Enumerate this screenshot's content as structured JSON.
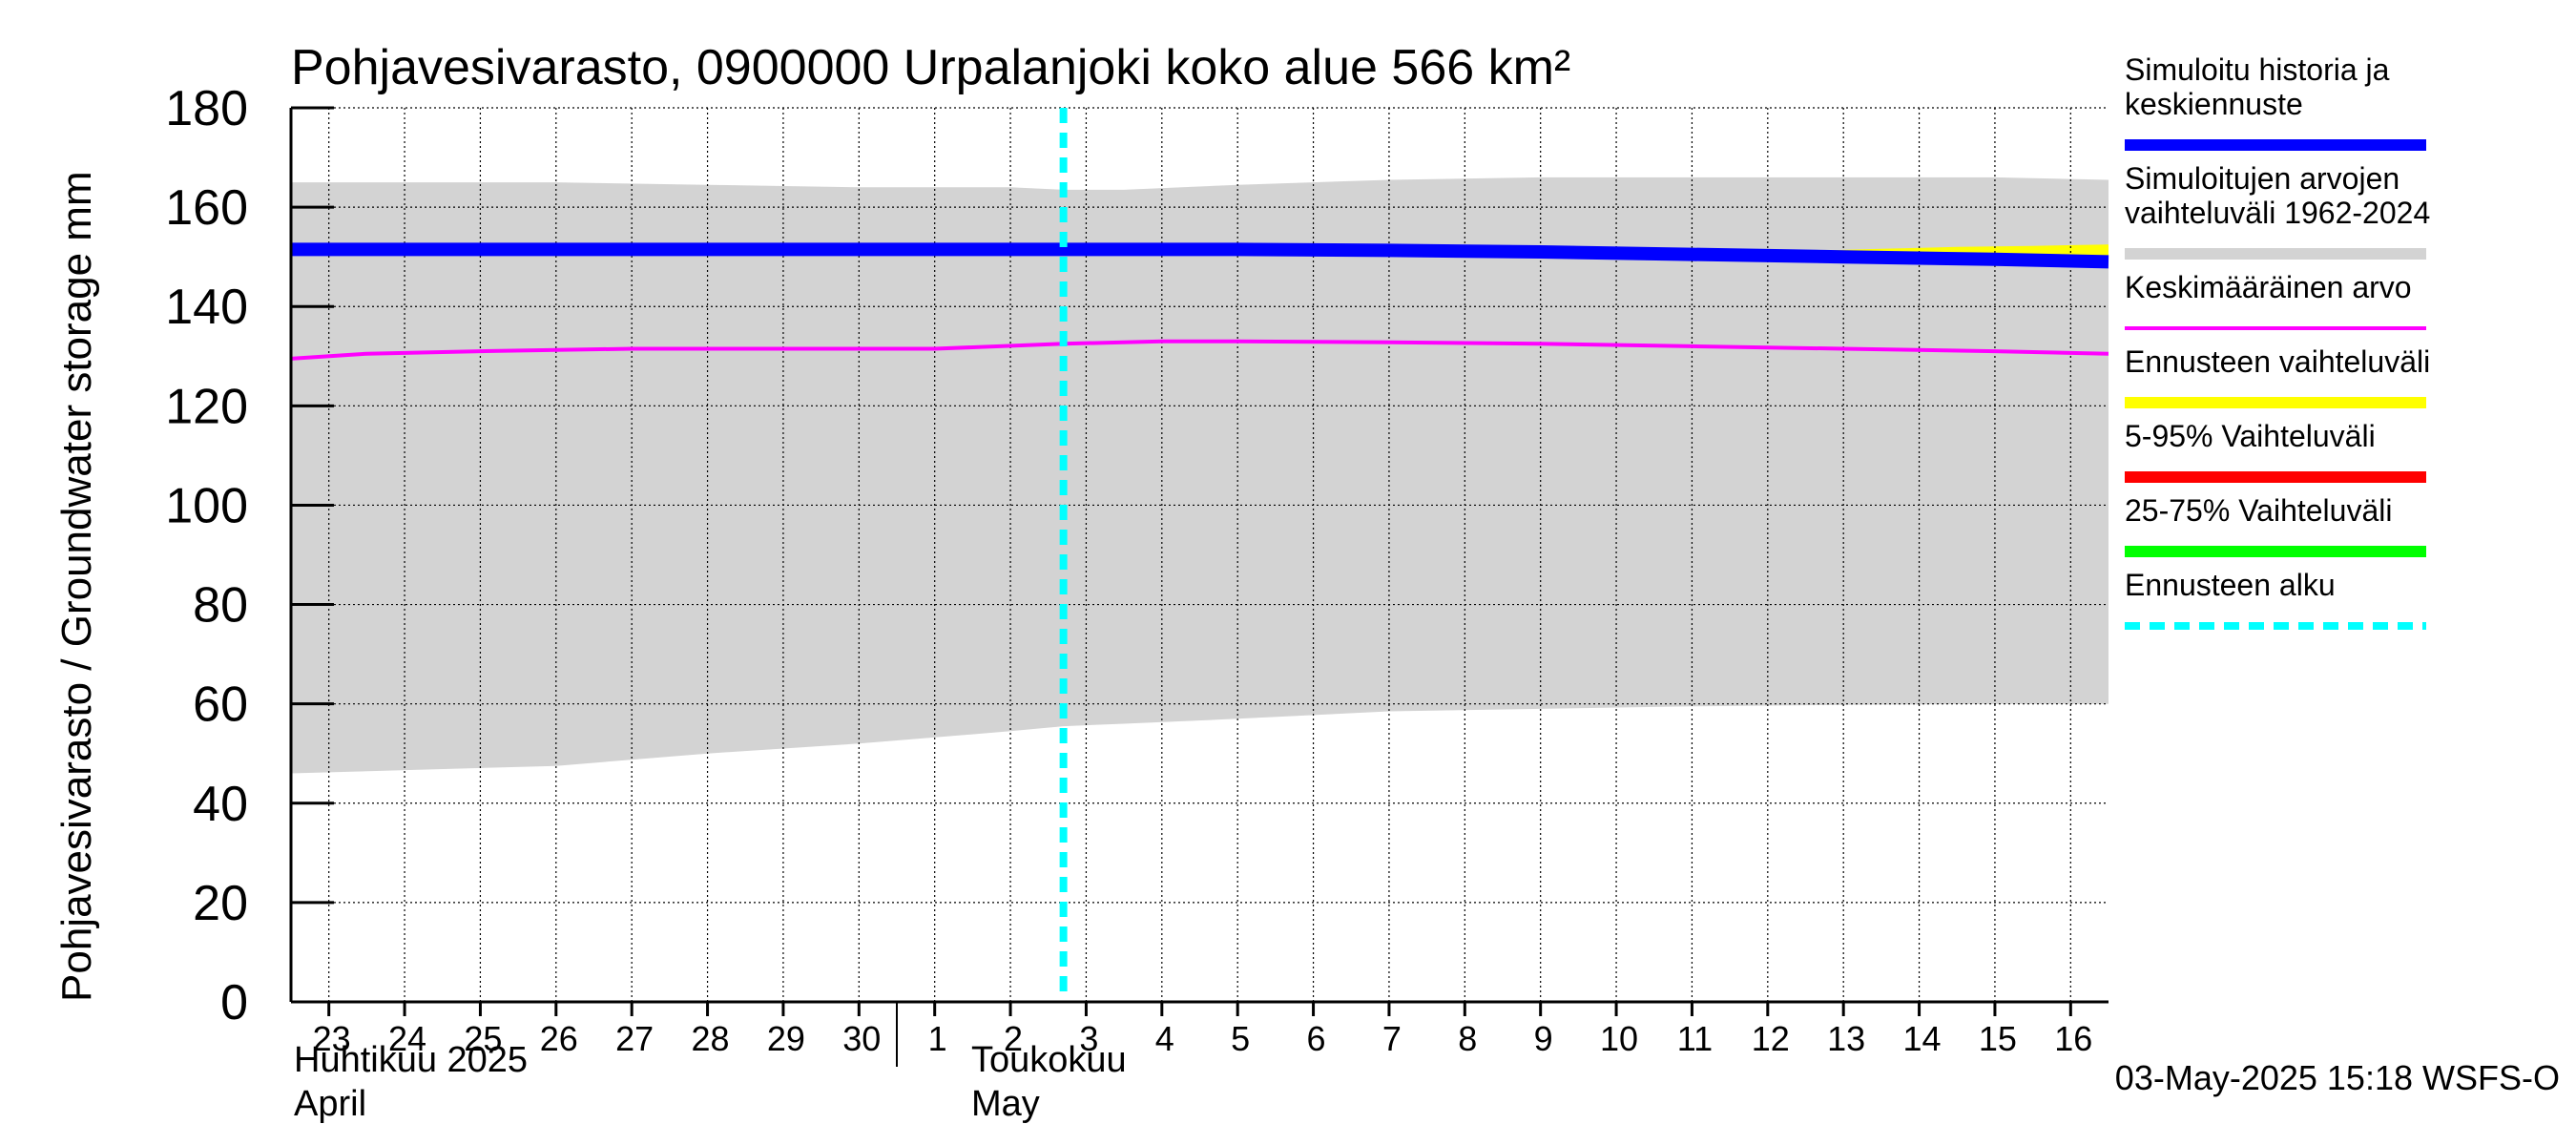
{
  "chart_data": {
    "type": "area",
    "title": "Pohjavesivarasto, 0900000 Urpalanjoki koko alue 566 km²",
    "ylabel": "Pohjavesivarasto / Groundwater storage   mm",
    "ylim": [
      0,
      180
    ],
    "yticks": [
      0,
      20,
      40,
      60,
      80,
      100,
      120,
      140,
      160,
      180
    ],
    "x_start_day": 22.5,
    "x_end_day": 46.5,
    "x_ticks": [
      {
        "day": 23,
        "label": "23"
      },
      {
        "day": 24,
        "label": "24"
      },
      {
        "day": 25,
        "label": "25"
      },
      {
        "day": 26,
        "label": "26"
      },
      {
        "day": 27,
        "label": "27"
      },
      {
        "day": 28,
        "label": "28"
      },
      {
        "day": 29,
        "label": "29"
      },
      {
        "day": 30,
        "label": "30"
      },
      {
        "day": 31,
        "label": "1"
      },
      {
        "day": 32,
        "label": "2"
      },
      {
        "day": 33,
        "label": "3"
      },
      {
        "day": 34,
        "label": "4"
      },
      {
        "day": 35,
        "label": "5"
      },
      {
        "day": 36,
        "label": "6"
      },
      {
        "day": 37,
        "label": "7"
      },
      {
        "day": 38,
        "label": "8"
      },
      {
        "day": 39,
        "label": "9"
      },
      {
        "day": 40,
        "label": "10"
      },
      {
        "day": 41,
        "label": "11"
      },
      {
        "day": 42,
        "label": "12"
      },
      {
        "day": 43,
        "label": "13"
      },
      {
        "day": 44,
        "label": "14"
      },
      {
        "day": 45,
        "label": "15"
      },
      {
        "day": 46,
        "label": "16"
      }
    ],
    "month_boundary_day": 30.5,
    "month_labels": {
      "april_fi": "Huhtikuu  2025",
      "april_en": "April",
      "may_fi": "Toukokuu",
      "may_en": "May"
    },
    "forecast_start_day": 32.7,
    "series": [
      {
        "name": "Simuloitujen arvojen vaihteluväli 1962-2024",
        "kind": "band",
        "color": "#d3d3d3",
        "x": [
          22.5,
          26,
          28,
          30,
          32,
          32.7,
          33.5,
          35,
          37,
          39,
          41,
          43,
          45,
          46.5
        ],
        "upper": [
          165,
          165,
          164.5,
          164,
          164,
          163.5,
          163.5,
          164.5,
          165.5,
          166,
          166,
          166,
          166,
          165.5
        ],
        "lower": [
          46,
          47.5,
          50,
          52,
          54.5,
          55.5,
          56,
          57,
          58.5,
          59,
          59.5,
          59.8,
          60,
          60
        ]
      },
      {
        "name": "Keskimääräinen arvo",
        "kind": "line",
        "color": "#ff00ff",
        "x": [
          22.5,
          23.5,
          25,
          27,
          29,
          31,
          32.7,
          34,
          35,
          37,
          39,
          41,
          43,
          45,
          46.5
        ],
        "values": [
          129.5,
          130.5,
          131,
          131.5,
          131.5,
          131.5,
          132.5,
          133,
          133,
          132.8,
          132.5,
          132,
          131.5,
          131,
          130.5
        ]
      },
      {
        "name": "Ennusteen vaihteluväli",
        "kind": "band",
        "color": "#ffff00",
        "x": [
          41.5,
          42.5,
          43.5,
          44.5,
          45.5,
          46.5
        ],
        "upper": [
          150.8,
          151.2,
          151.6,
          152,
          152.2,
          152.5
        ],
        "lower": [
          150.2,
          149.8,
          149.5,
          149.2,
          148.9,
          148.6
        ]
      },
      {
        "name": "Simuloitu historia ja keskiennuste",
        "kind": "line",
        "color": "#0000ff",
        "x": [
          22.5,
          25,
          28,
          31,
          32.7,
          35,
          37,
          39,
          41,
          43,
          45,
          46.5
        ],
        "values": [
          151.5,
          151.5,
          151.5,
          151.5,
          151.5,
          151.5,
          151.3,
          151,
          150.5,
          150,
          149.5,
          149
        ]
      }
    ],
    "legend": {
      "placement": "right",
      "items": [
        {
          "label_lines": [
            "Simuloitu historia ja",
            "keskiennuste"
          ],
          "color": "#0000ff",
          "style": "solid"
        },
        {
          "label_lines": [
            "Simuloitujen arvojen",
            "vaihteluväli 1962-2024"
          ],
          "color": "#d3d3d3",
          "style": "solid"
        },
        {
          "label_lines": [
            "Keskimääräinen arvo"
          ],
          "color": "#ff00ff",
          "style": "thin"
        },
        {
          "label_lines": [
            "Ennusteen vaihteluväli"
          ],
          "color": "#ffff00",
          "style": "solid"
        },
        {
          "label_lines": [
            "5-95% Vaihteluväli"
          ],
          "color": "#ff0000",
          "style": "solid"
        },
        {
          "label_lines": [
            "25-75% Vaihteluväli"
          ],
          "color": "#00ff00",
          "style": "solid"
        },
        {
          "label_lines": [
            "Ennusteen alku"
          ],
          "color": "#00ffff",
          "style": "dashed"
        }
      ]
    },
    "footer": "03-May-2025 15:18 WSFS-O"
  }
}
